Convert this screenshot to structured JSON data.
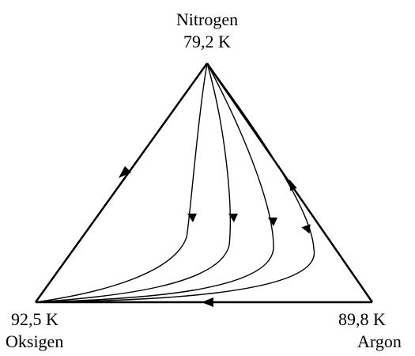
{
  "diagram": {
    "top_vertex": {
      "component": "Nitrogen",
      "temperature": "79,2 K"
    },
    "bottom_left_vertex": {
      "component": "Oksigen",
      "temperature": "92,5 K"
    },
    "bottom_right_vertex": {
      "component": "Argon",
      "temperature": "89,8 K"
    },
    "colors": {
      "line": "#000000",
      "background": "#ffffff"
    }
  }
}
